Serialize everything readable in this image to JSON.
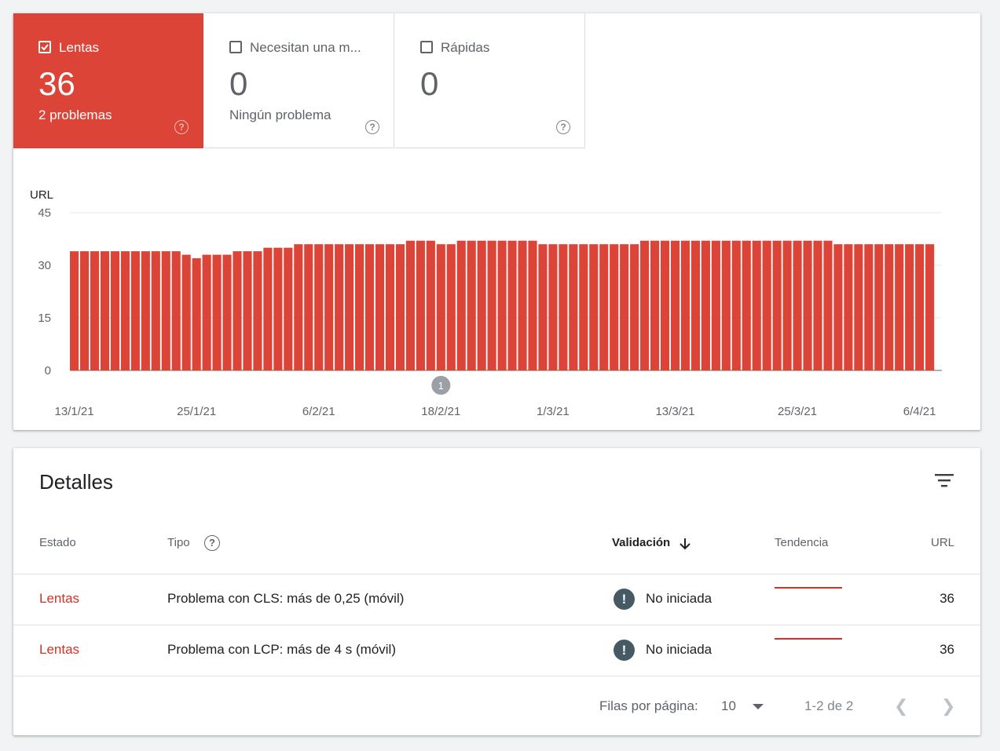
{
  "summary": {
    "tiles": [
      {
        "label": "Lentas",
        "count": "36",
        "sub": "2 problemas",
        "checked": true
      },
      {
        "label": "Necesitan una m...",
        "count": "0",
        "sub": "Ningún problema",
        "checked": false
      },
      {
        "label": "Rápidas",
        "count": "0",
        "sub": "",
        "checked": false
      }
    ]
  },
  "chart_data": {
    "type": "bar",
    "ylabel": "URL",
    "ylim": [
      0,
      45
    ],
    "yticks": [
      "0",
      "15",
      "30",
      "45"
    ],
    "xtick_labels": [
      "13/1/21",
      "25/1/21",
      "6/2/21",
      "18/2/21",
      "1/3/21",
      "13/3/21",
      "25/3/21",
      "6/4/21"
    ],
    "annotation": "1",
    "annotation_date": "18/2/21",
    "bar_color": "#dd4438",
    "first_date": "13/1/21",
    "values": [
      34,
      34,
      34,
      34,
      34,
      34,
      34,
      34,
      34,
      34,
      34,
      33,
      32,
      33,
      33,
      33,
      34,
      34,
      34,
      35,
      35,
      35,
      36,
      36,
      36,
      36,
      36,
      36,
      36,
      36,
      36,
      36,
      36,
      37,
      37,
      37,
      36,
      36,
      37,
      37,
      37,
      37,
      37,
      37,
      37,
      37,
      36,
      36,
      36,
      36,
      36,
      36,
      36,
      36,
      36,
      36,
      37,
      37,
      37,
      37,
      37,
      37,
      37,
      37,
      37,
      37,
      37,
      37,
      37,
      37,
      37,
      37,
      37,
      37,
      37,
      36,
      36,
      36,
      36,
      36,
      36,
      36,
      36,
      36,
      36
    ]
  },
  "details": {
    "title": "Detalles",
    "filter_icon": "filter-icon",
    "headers": {
      "estado": "Estado",
      "tipo": "Tipo",
      "validacion": "Validación",
      "tendencia": "Tendencia",
      "url": "URL"
    },
    "rows": [
      {
        "estado": "Lentas",
        "tipo": "Problema con CLS: más de 0,25 (móvil)",
        "validacion": "No iniciada",
        "url": "36"
      },
      {
        "estado": "Lentas",
        "tipo": "Problema con LCP: más de 4 s (móvil)",
        "validacion": "No iniciada",
        "url": "36"
      }
    ],
    "pager": {
      "label": "Filas por página:",
      "rows_per_page": "10",
      "range": "1-2 de 2"
    }
  },
  "colors": {
    "accent": "#dd4438",
    "status_error": "#d93025"
  }
}
